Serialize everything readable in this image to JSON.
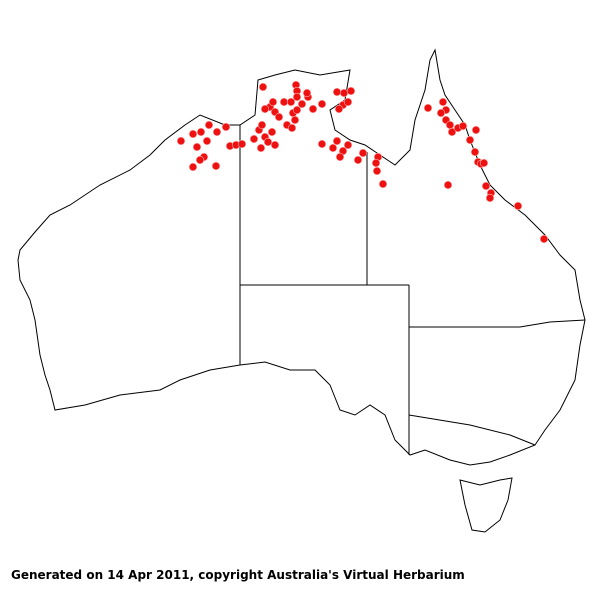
{
  "map": {
    "region": "Australia",
    "point_color": "#ee1111",
    "outline_color": "#000000"
  },
  "footer": {
    "text": "Generated on 14 Apr 2011, copyright Australia's Virtual Herbarium"
  }
}
